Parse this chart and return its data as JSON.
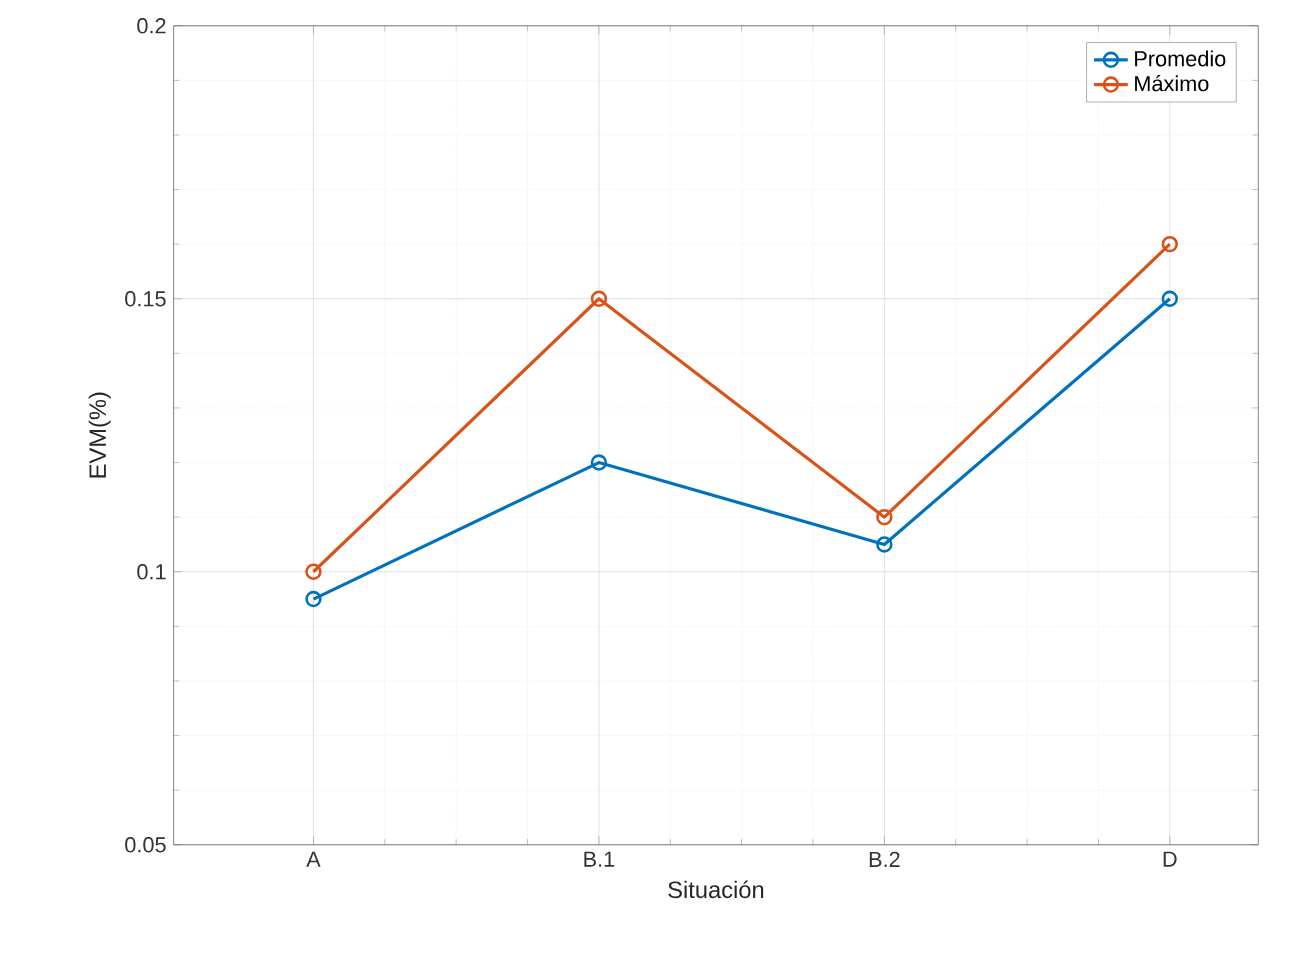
{
  "chart_data": {
    "type": "line",
    "xlabel": "Situación",
    "ylabel": "EVM(%)",
    "categories": [
      "A",
      "B.1",
      "B.2",
      "D"
    ],
    "series": [
      {
        "name": "Promedio",
        "color": "#0072bd",
        "values": [
          0.095,
          0.12,
          0.105,
          0.15
        ]
      },
      {
        "name": "Máximo",
        "color": "#d95319",
        "values": [
          0.1,
          0.15,
          0.11,
          0.16
        ]
      }
    ],
    "ylim": [
      0.05,
      0.2
    ],
    "yticks": [
      0.05,
      0.1,
      0.15,
      0.2
    ],
    "grid": true,
    "legend": "top right",
    "marker": "circle",
    "line_style": "solid"
  }
}
